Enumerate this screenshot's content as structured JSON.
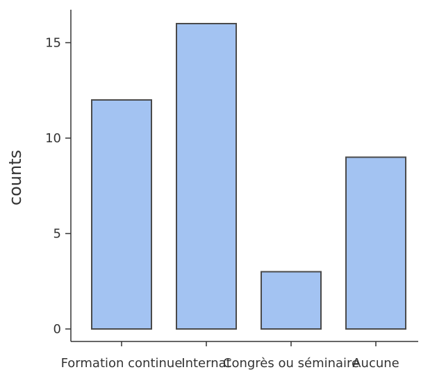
{
  "chart_data": {
    "type": "bar",
    "categories": [
      "Formation continue",
      "Internat",
      "Congrès ou séminaire",
      "Aucune"
    ],
    "values": [
      12,
      16,
      3,
      9
    ],
    "title": "",
    "xlabel": "",
    "ylabel": "counts",
    "ylim": [
      0,
      16.8
    ],
    "yticks": [
      0,
      5,
      10,
      15
    ],
    "bar_color": "#a3c3f2",
    "bar_edge_color": "#4a4a4a",
    "axis_color": "#333333",
    "grid": false,
    "legend": "none"
  }
}
